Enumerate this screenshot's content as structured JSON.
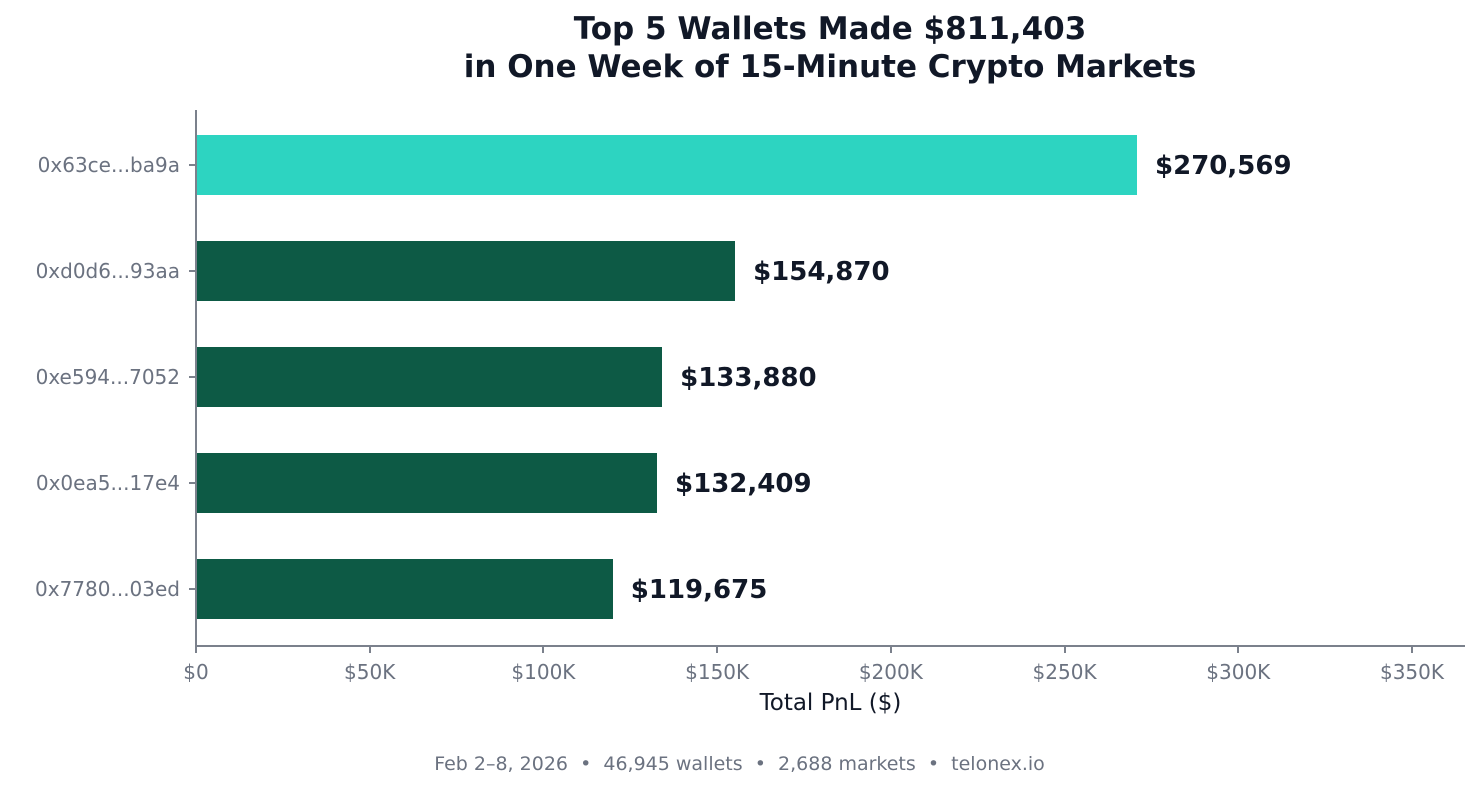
{
  "chart_data": {
    "type": "bar",
    "orientation": "horizontal",
    "title": "Top 5 Wallets Made $811,403\nin One Week of 15-Minute Crypto Markets",
    "title_lines": [
      "Top 5 Wallets Made $811,403",
      "in One Week of 15-Minute Crypto Markets"
    ],
    "xlabel": "Total PnL ($)",
    "ylabel": "",
    "categories": [
      "0x63ce...ba9a",
      "0xd0d6...93aa",
      "0xe594...7052",
      "0x0ea5...17e4",
      "0x7780...03ed"
    ],
    "values": [
      270569,
      154870,
      133880,
      132409,
      119675
    ],
    "value_labels": [
      "$270,569",
      "$154,870",
      "$133,880",
      "$132,409",
      "$119,675"
    ],
    "bar_colors": [
      "#2dd4c1",
      "#0d5a45",
      "#0d5a45",
      "#0d5a45",
      "#0d5a45"
    ],
    "xlim": [
      0,
      365000
    ],
    "xticks": [
      0,
      50000,
      100000,
      150000,
      200000,
      250000,
      300000,
      350000
    ],
    "xtick_labels": [
      "$0",
      "$50K",
      "$100K",
      "$150K",
      "$200K",
      "$250K",
      "$300K",
      "$350K"
    ],
    "grid": false,
    "legend": null,
    "footer": "Feb 2–8, 2026  •  46,945 wallets  •  2,688 markets  •  telonex.io"
  },
  "colors": {
    "highlight": "#2dd4c1",
    "bar": "#0d5a45",
    "text_dark": "#111827",
    "text_muted": "#6b7280",
    "axis": "#7b818c"
  }
}
